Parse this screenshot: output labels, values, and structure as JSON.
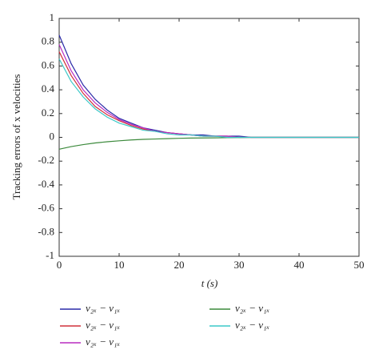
{
  "chart_data": {
    "type": "line",
    "x_label": "t (s)",
    "y_label": "Tracking errors of x velocities",
    "x": [
      0,
      2,
      4,
      6,
      8,
      10,
      12,
      14,
      16,
      18,
      20,
      22,
      24,
      26,
      28,
      30,
      32,
      34,
      36,
      38,
      40,
      42,
      44,
      46,
      48,
      50
    ],
    "series": [
      {
        "name": "v₂ₓ − v₁ₓ",
        "color": "#2a2aa8",
        "values": [
          0.86,
          0.62,
          0.44,
          0.32,
          0.23,
          0.16,
          0.12,
          0.08,
          0.06,
          0.04,
          0.03,
          0.02,
          0.02,
          0.01,
          0.01,
          0.01,
          0,
          0,
          0,
          0,
          0,
          0,
          0,
          0,
          0,
          0
        ]
      },
      {
        "name": "v₂ₓ − v₁ₓ",
        "color": "#d0303a",
        "values": [
          0.72,
          0.52,
          0.37,
          0.26,
          0.19,
          0.14,
          0.1,
          0.07,
          0.05,
          0.04,
          0.03,
          0.02,
          0.01,
          0.01,
          0.01,
          0,
          0,
          0,
          0,
          0,
          0,
          0,
          0,
          0,
          0,
          0
        ]
      },
      {
        "name": "v₂ₓ − v₁ₓ",
        "color": "#b82cc0",
        "values": [
          0.78,
          0.56,
          0.4,
          0.29,
          0.21,
          0.15,
          0.11,
          0.08,
          0.05,
          0.04,
          0.03,
          0.02,
          0.01,
          0.01,
          0.01,
          0,
          0,
          0,
          0,
          0,
          0,
          0,
          0,
          0,
          0,
          0
        ]
      },
      {
        "name": "v₂ₓ − v₁ₓ",
        "color": "#3c8a3c",
        "values": [
          -0.1,
          -0.078,
          -0.061,
          -0.047,
          -0.037,
          -0.029,
          -0.022,
          -0.017,
          -0.014,
          -0.011,
          -0.008,
          -0.006,
          -0.005,
          -0.004,
          -0.003,
          -0.002,
          0,
          0,
          0,
          0,
          0,
          0,
          0,
          0,
          0,
          0
        ]
      },
      {
        "name": "v₂ₓ − v₁ₓ",
        "color": "#3cc8c8",
        "values": [
          0.66,
          0.47,
          0.34,
          0.24,
          0.17,
          0.12,
          0.09,
          0.06,
          0.05,
          0.03,
          0.02,
          0.02,
          0.01,
          0.01,
          0,
          0,
          0,
          0,
          0,
          0,
          0,
          0,
          0,
          0,
          0,
          0
        ]
      }
    ],
    "xlim": [
      0,
      50
    ],
    "xticks": [
      0,
      10,
      20,
      30,
      40,
      50
    ],
    "ylim": [
      -1,
      1
    ],
    "yticks": [
      -1,
      -0.8,
      -0.6,
      -0.4,
      -0.2,
      0,
      0.2,
      0.4,
      0.6,
      0.8,
      1
    ]
  }
}
